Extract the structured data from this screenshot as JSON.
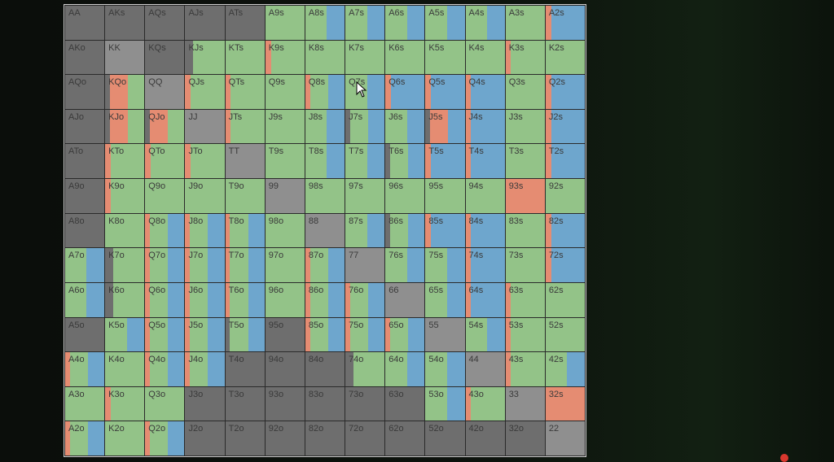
{
  "colors": {
    "fold": "#6e6e6e",
    "pair": "#8f8f8f",
    "call": "#93c388",
    "raise": "#e58c72",
    "allin": "#6ea6cd"
  },
  "rows": [
    [
      "AA",
      "AKs",
      "AQs",
      "AJs",
      "ATs",
      "A9s",
      "A8s",
      "A7s",
      "A6s",
      "A5s",
      "A4s",
      "A3s",
      "A2s"
    ],
    [
      "AKo",
      "KK",
      "KQs",
      "KJs",
      "KTs",
      "K9s",
      "K8s",
      "K7s",
      "K6s",
      "K5s",
      "K4s",
      "K3s",
      "K2s"
    ],
    [
      "AQo",
      "KQo",
      "QQ",
      "QJs",
      "QTs",
      "Q9s",
      "Q8s",
      "Q7s",
      "Q6s",
      "Q5s",
      "Q4s",
      "Q3s",
      "Q2s"
    ],
    [
      "AJo",
      "KJo",
      "QJo",
      "JJ",
      "JTs",
      "J9s",
      "J8s",
      "J7s",
      "J6s",
      "J5s",
      "J4s",
      "J3s",
      "J2s"
    ],
    [
      "ATo",
      "KTo",
      "QTo",
      "JTo",
      "TT",
      "T9s",
      "T8s",
      "T7s",
      "T6s",
      "T5s",
      "T4s",
      "T3s",
      "T2s"
    ],
    [
      "A9o",
      "K9o",
      "Q9o",
      "J9o",
      "T9o",
      "99",
      "98s",
      "97s",
      "96s",
      "95s",
      "94s",
      "93s",
      "92s"
    ],
    [
      "A8o",
      "K8o",
      "Q8o",
      "J8o",
      "T8o",
      "98o",
      "88",
      "87s",
      "86s",
      "85s",
      "84s",
      "83s",
      "82s"
    ],
    [
      "A7o",
      "K7o",
      "Q7o",
      "J7o",
      "T7o",
      "97o",
      "87o",
      "77",
      "76s",
      "75s",
      "74s",
      "73s",
      "72s"
    ],
    [
      "A6o",
      "K6o",
      "Q6o",
      "J6o",
      "T6o",
      "96o",
      "86o",
      "76o",
      "66",
      "65s",
      "64s",
      "63s",
      "62s"
    ],
    [
      "A5o",
      "K5o",
      "Q5o",
      "J5o",
      "T5o",
      "95o",
      "85o",
      "75o",
      "65o",
      "55",
      "54s",
      "53s",
      "52s"
    ],
    [
      "A4o",
      "K4o",
      "Q4o",
      "J4o",
      "T4o",
      "94o",
      "84o",
      "74o",
      "64o",
      "54o",
      "44",
      "43s",
      "42s"
    ],
    [
      "A3o",
      "K3o",
      "Q3o",
      "J3o",
      "T3o",
      "93o",
      "83o",
      "73o",
      "63o",
      "53o",
      "43o",
      "33",
      "32s"
    ],
    [
      "A2o",
      "K2o",
      "Q2o",
      "J2o",
      "T2o",
      "92o",
      "82o",
      "72o",
      "62o",
      "52o",
      "42o",
      "32o",
      "22"
    ]
  ],
  "fills": [
    [
      "F",
      "F",
      "F",
      "F",
      "F",
      "G",
      "GB",
      "GB",
      "GB",
      "GB",
      "GB",
      "G",
      "RB"
    ],
    [
      "F",
      "P",
      "F",
      "FG",
      "G",
      "RG",
      "G",
      "G",
      "G",
      "G",
      "G",
      "RG",
      "G"
    ],
    [
      "F",
      "FRG",
      "P",
      "RG",
      "RG",
      "G",
      "RGB",
      "GB",
      "RB",
      "RB",
      "RB",
      "G",
      "RB"
    ],
    [
      "F",
      "FRG",
      "FRG",
      "P",
      "RG",
      "G",
      "GB",
      "FGB",
      "GB",
      "FRB",
      "RB",
      "G",
      "RB"
    ],
    [
      "F",
      "RG",
      "RG",
      "RG",
      "P",
      "G",
      "GB",
      "GB",
      "FGB",
      "RB",
      "RB",
      "G",
      "RB"
    ],
    [
      "F",
      "RG",
      "G",
      "G",
      "G",
      "P",
      "G",
      "G",
      "G",
      "G",
      "G",
      "R",
      "G"
    ],
    [
      "F",
      "G",
      "RGB",
      "RGB",
      "RGB",
      "G",
      "P",
      "GB",
      "FGB",
      "RB",
      "RB",
      "G",
      "RB"
    ],
    [
      "GB",
      "FG",
      "RGB",
      "RGB",
      "RGB",
      "G",
      "RGB",
      "P",
      "GB",
      "GB",
      "RB",
      "G",
      "RB"
    ],
    [
      "GB",
      "FG",
      "RGB",
      "RGB",
      "RGB",
      "G",
      "RGB",
      "RGB",
      "P",
      "GB",
      "RB",
      "RG",
      "G"
    ],
    [
      "F",
      "GB",
      "RGB",
      "RGB",
      "FGB",
      "F",
      "RGB",
      "RGB",
      "RGB",
      "P",
      "GB",
      "RG",
      "G"
    ],
    [
      "RGB",
      "G",
      "RGB",
      "RGB",
      "F",
      "F",
      "F",
      "FG",
      "GB",
      "GB",
      "P",
      "RG",
      "GB"
    ],
    [
      "G",
      "RG",
      "G",
      "F",
      "F",
      "F",
      "F",
      "F",
      "F",
      "GB",
      "RG",
      "P",
      "R"
    ],
    [
      "RGB",
      "G",
      "RGB",
      "F",
      "F",
      "F",
      "F",
      "F",
      "F",
      "F",
      "F",
      "F",
      "P"
    ]
  ]
}
